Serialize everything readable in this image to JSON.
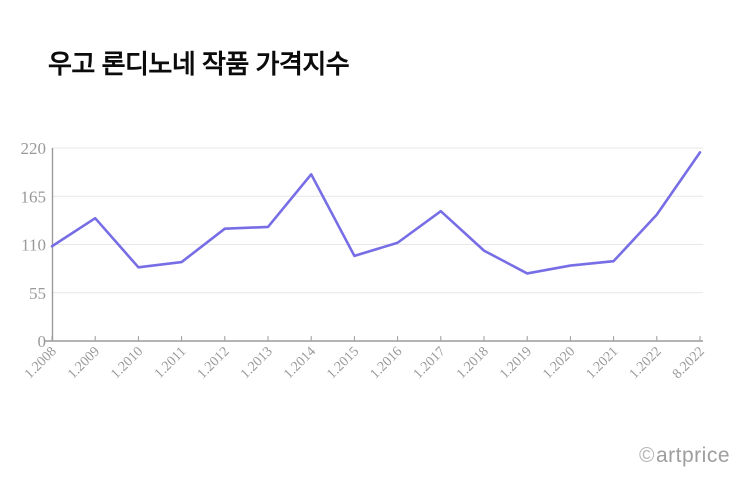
{
  "title": "우고 론디노네 작품 가격지수",
  "watermark": {
    "symbol": "©",
    "text": "artprice"
  },
  "colors": {
    "line": "#776ee6",
    "grid": "#e7e7e7",
    "axis": "#9b9b9b",
    "tick_label": "#999999",
    "title": "#0b0b0b",
    "watermark": "#9e9e9e",
    "background": "#ffffff"
  },
  "chart_data": {
    "type": "line",
    "title": "우고 론디노네 작품 가격지수",
    "categories": [
      "1.2008",
      "1.2009",
      "1.2010",
      "1.2011",
      "1.2012",
      "1.2013",
      "1.2014",
      "1.2015",
      "1.2016",
      "1.2017",
      "1.2018",
      "1.2019",
      "1.2020",
      "1.2021",
      "1.2022",
      "8.2022"
    ],
    "values": [
      108,
      140,
      84,
      90,
      128,
      130,
      190,
      97,
      112,
      148,
      103,
      77,
      86,
      91,
      144,
      215
    ],
    "xlabel": "",
    "ylabel": "",
    "ylim": [
      0,
      220
    ],
    "yticks": [
      0,
      55,
      110,
      165,
      220
    ],
    "grid": true,
    "legend_position": "none",
    "x_tick_rotation": -45
  }
}
